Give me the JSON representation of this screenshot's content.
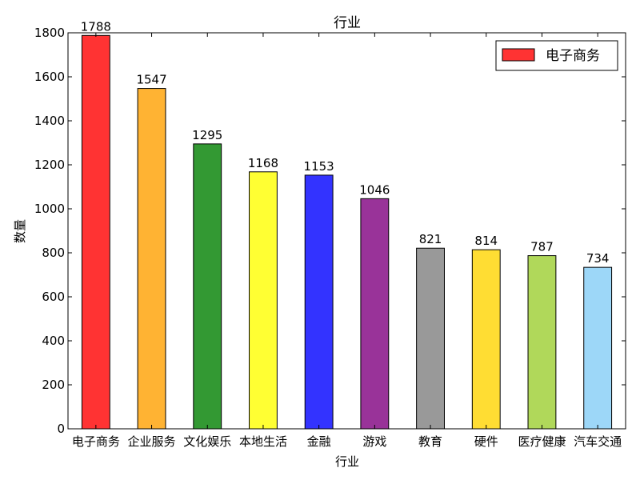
{
  "chart_data": {
    "type": "bar",
    "title": "行业",
    "xlabel": "行业",
    "ylabel": "数量",
    "ylim": [
      0,
      1800
    ],
    "yticks": [
      0,
      200,
      400,
      600,
      800,
      1000,
      1200,
      1400,
      1600,
      1800
    ],
    "grid": false,
    "legend": {
      "placement": "top-right",
      "entries": [
        "电子商务"
      ]
    },
    "categories": [
      "电子商务",
      "企业服务",
      "文化娱乐",
      "本地生活",
      "金融",
      "游戏",
      "教育",
      "硬件",
      "医疗健康",
      "汽车交通"
    ],
    "values": [
      1788,
      1547,
      1295,
      1168,
      1153,
      1046,
      821,
      814,
      787,
      734
    ],
    "colors": [
      "#ff3333",
      "#ffb333",
      "#339933",
      "#ffff33",
      "#3333ff",
      "#993399",
      "#999999",
      "#ffdd33",
      "#b0d85a",
      "#9dd7f8"
    ]
  }
}
